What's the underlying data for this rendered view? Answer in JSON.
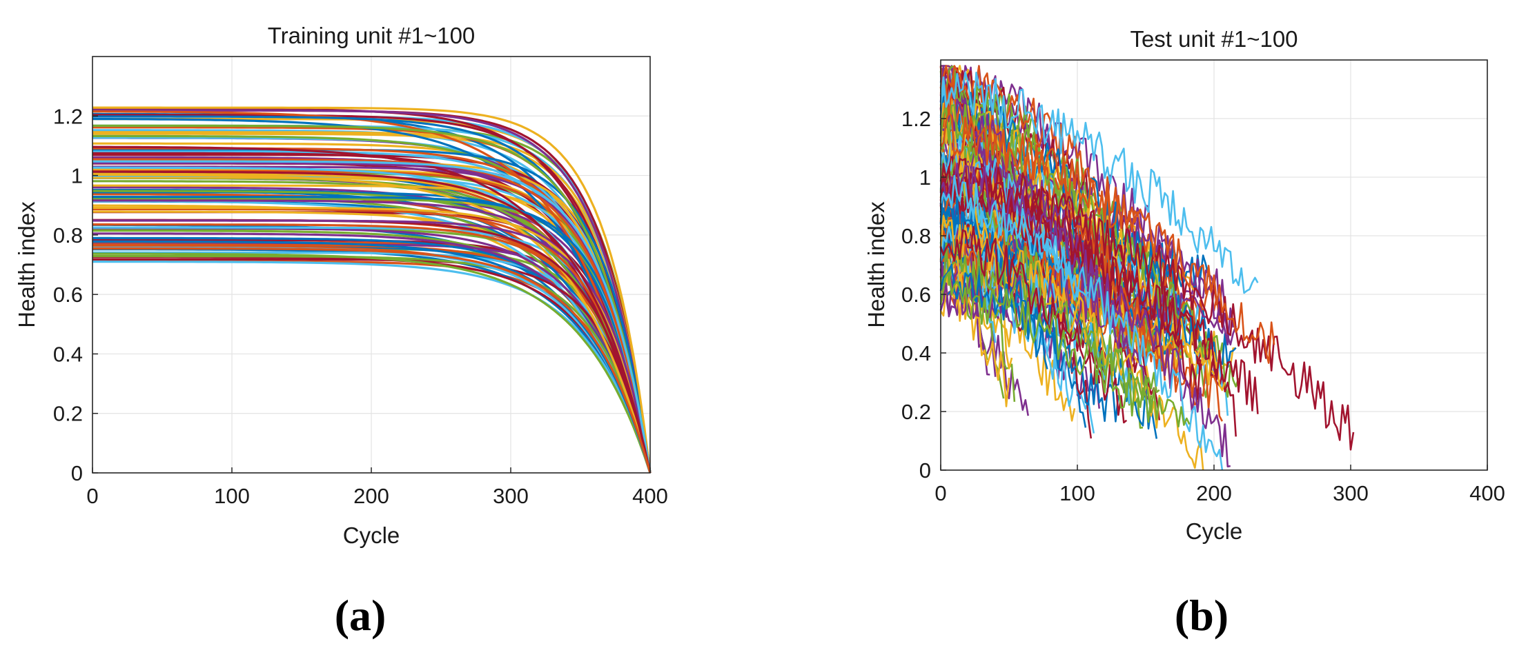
{
  "figure": {
    "panel_a_label": "(a)",
    "panel_b_label": "(b)"
  },
  "chart_data": [
    {
      "type": "line",
      "title": "Training unit #1~100",
      "xlabel": "Cycle",
      "ylabel": "Health index",
      "xlim": [
        0,
        400
      ],
      "ylim": [
        0,
        1.4
      ],
      "xticks": [
        0,
        100,
        200,
        300,
        400
      ],
      "xtick_labels": [
        "0",
        "100",
        "200",
        "300",
        "400"
      ],
      "yticks": [
        0,
        0.2,
        0.4,
        0.6,
        0.8,
        1.0,
        1.2
      ],
      "ytick_labels": [
        "0",
        "0.2",
        "0.4",
        "0.6",
        "0.8",
        "1",
        "1.2"
      ],
      "grid": true,
      "series_count": 100,
      "series_description": "100 smooth degradation curves; each starts at an initial health index between about 0.70 and 1.23 at cycle 0, stays nearly flat, then decays exponentially to 0 at cycle 400",
      "initial_value_range": [
        0.7,
        1.23
      ],
      "end_cycle": 400,
      "end_value": 0,
      "colors": [
        "#0072BD",
        "#D95319",
        "#EDB120",
        "#7E2F8E",
        "#77AC30",
        "#4DBEEE",
        "#A2142F"
      ]
    },
    {
      "type": "line",
      "title": "Test unit #1~100",
      "xlabel": "Cycle",
      "ylabel": "Health index",
      "xlim": [
        0,
        400
      ],
      "ylim": [
        0,
        1.4
      ],
      "xticks": [
        0,
        100,
        200,
        300,
        400
      ],
      "xtick_labels": [
        "0",
        "100",
        "200",
        "300",
        "400"
      ],
      "yticks": [
        0,
        0.2,
        0.4,
        0.6,
        0.8,
        1.0,
        1.2
      ],
      "ytick_labels": [
        "0",
        "0.2",
        "0.4",
        "0.6",
        "0.8",
        "1",
        "1.2"
      ],
      "grid": true,
      "series_count": 100,
      "series_description": "100 noisy, truncated degradation trajectories starting between about 0.6 and 1.37 and ending between cycle ~30 and ~303",
      "max_end_cycle": 303,
      "colors": [
        "#0072BD",
        "#D95319",
        "#EDB120",
        "#7E2F8E",
        "#77AC30",
        "#4DBEEE",
        "#A2142F"
      ],
      "representative_series": [
        {
          "name": "longest",
          "color": "#A2142F",
          "start": 1.0,
          "end_cycle": 303,
          "end_value": 0.13
        },
        {
          "name": "light-blue",
          "color": "#4DBEEE",
          "start": 1.3,
          "end_cycle": 233,
          "end_value": 0.62
        },
        {
          "name": "orange-long",
          "color": "#D95319",
          "start": 1.15,
          "end_cycle": 244,
          "end_value": 0.42
        },
        {
          "name": "red-long",
          "color": "#A2142F",
          "start": 0.95,
          "end_cycle": 232,
          "end_value": 0.25
        },
        {
          "name": "purple",
          "color": "#7E2F8E",
          "start": 1.0,
          "end_cycle": 212,
          "end_value": 0.07
        },
        {
          "name": "yellow",
          "color": "#EDB120",
          "start": 0.8,
          "end_cycle": 192,
          "end_value": 0.01
        },
        {
          "name": "light-blue-2",
          "color": "#4DBEEE",
          "start": 0.95,
          "end_cycle": 207,
          "end_value": 0.03
        },
        {
          "name": "green",
          "color": "#77AC30",
          "start": 0.7,
          "end_cycle": 183,
          "end_value": 0.1
        },
        {
          "name": "blue",
          "color": "#0072BD",
          "start": 0.65,
          "end_cycle": 130,
          "end_value": 0.18
        },
        {
          "name": "red-short",
          "color": "#A2142F",
          "start": 0.8,
          "end_cycle": 136,
          "end_value": 0.2
        },
        {
          "name": "green-short",
          "color": "#77AC30",
          "start": 0.6,
          "end_cycle": 155,
          "end_value": 0.2
        }
      ]
    }
  ]
}
